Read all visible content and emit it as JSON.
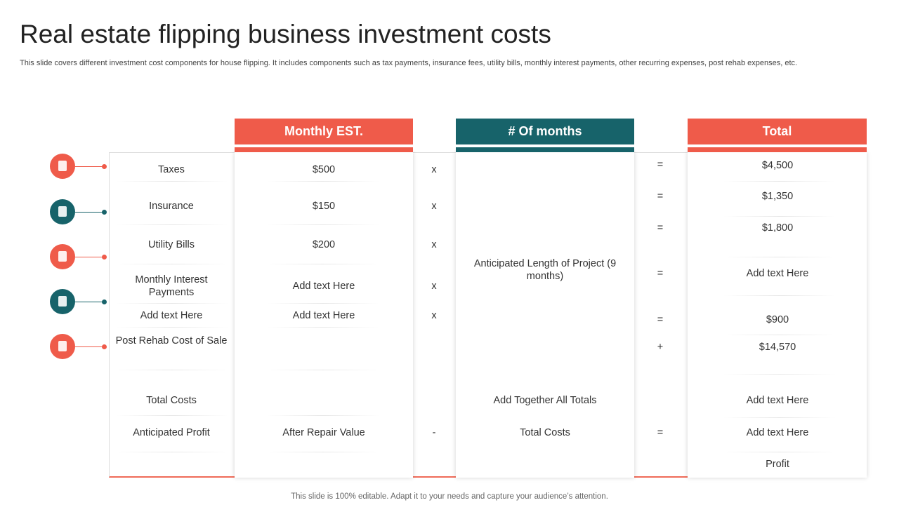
{
  "title": "Real estate  flipping business investment costs",
  "subtitle": "This slide covers different investment cost components for house flipping. It includes components such as tax payments, insurance fees, utility bills, monthly interest payments, other recurring expenses, post rehab expenses, etc.",
  "headers": [
    "Monthly EST.",
    "# Of months",
    "Total"
  ],
  "months_note": "Anticipated Length of Project (9 months)",
  "rows": [
    {
      "label": "Taxes",
      "monthly": "$500",
      "op": "x",
      "total_op": "=",
      "total": "$4,500"
    },
    {
      "label": "Insurance",
      "monthly": "$150",
      "op": "x",
      "total_op": "=",
      "total": "$1,350"
    },
    {
      "label": "Utility Bills",
      "monthly": "$200",
      "op": "x",
      "total_op": "=",
      "total": "$1,800"
    },
    {
      "label": "Monthly Interest Payments",
      "monthly": "Add text Here",
      "op": "x",
      "total_op": "=",
      "total": "Add text Here"
    },
    {
      "label": "Add text Here",
      "monthly": "Add text Here",
      "op": "x",
      "total_op": "=",
      "total": "$900"
    },
    {
      "label": "Post Rehab Cost of Sale",
      "total_op": "+",
      "total": "$14,570"
    },
    {
      "label": "Total Costs",
      "months": "Add Together All Totals",
      "total": "Add text Here"
    },
    {
      "label": "Anticipated Profit",
      "monthly": "After Repair Value",
      "op": "-",
      "months": "Total Costs",
      "total_op": "=",
      "total": "Add text Here"
    },
    {
      "total": "Profit"
    }
  ],
  "footer": "This slide is 100% editable. Adapt it to your needs and capture your audience’s attention."
}
